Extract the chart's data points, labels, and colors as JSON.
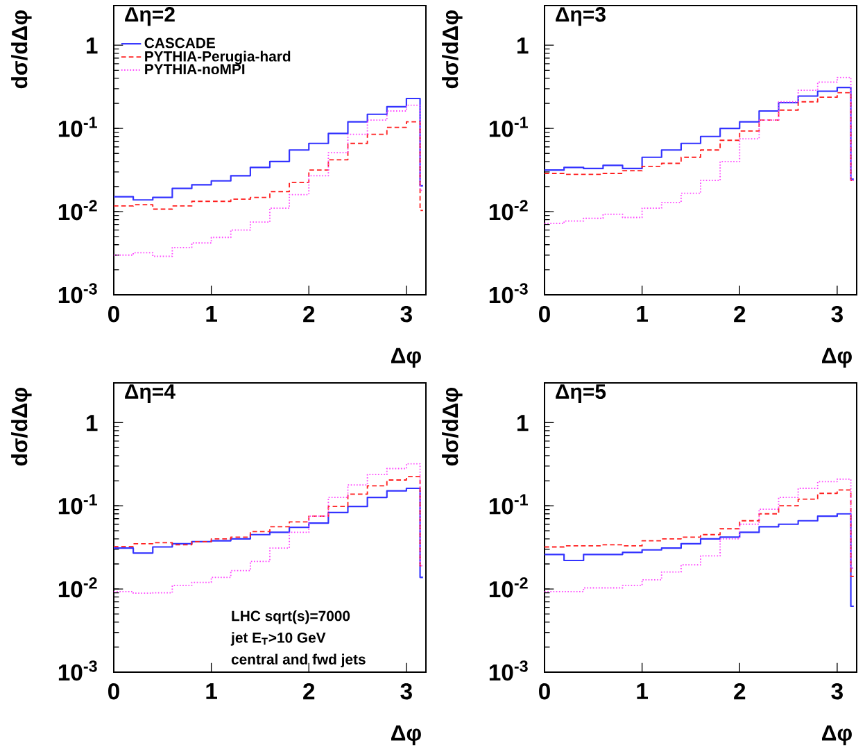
{
  "chart_data": [
    {
      "type": "step",
      "title": "Δη=2",
      "xlabel": "Δφ",
      "ylabel": "dσ/dΔφ",
      "log": true,
      "legend": "top left",
      "x": [
        0,
        0.2,
        0.4,
        0.6,
        0.8,
        1.0,
        1.2,
        1.4,
        1.6,
        1.8,
        2.0,
        2.2,
        2.4,
        2.6,
        2.8,
        3.0,
        3.14,
        3.17
      ],
      "xlim": [
        0,
        3.2
      ],
      "xticks": [
        0,
        1,
        2,
        3
      ],
      "ylim": [
        0.001,
        3
      ],
      "yticks": [
        {
          "value": 0.001,
          "label": "10$^{-3}$"
        },
        {
          "value": 0.01,
          "label": "10$^{-2}$"
        },
        {
          "value": 0.1,
          "label": "10$^{-1}$"
        },
        1
      ],
      "series": [
        {
          "name": "CASCADE",
          "color": "#3333ff",
          "line_style": "solid",
          "values": [
            0.0151,
            0.0138,
            0.0148,
            0.019,
            0.021,
            0.0234,
            0.027,
            0.034,
            0.04,
            0.055,
            0.066,
            0.087,
            0.12,
            0.148,
            0.182,
            0.229,
            0.0204,
            0.0204
          ]
        },
        {
          "name": "PYTHIA-Perugia-hard",
          "color": "#ff2020",
          "line_style": "dashed",
          "values": [
            0.0117,
            0.0121,
            0.0107,
            0.0117,
            0.0133,
            0.0133,
            0.0141,
            0.0148,
            0.0174,
            0.0224,
            0.0316,
            0.042,
            0.066,
            0.085,
            0.103,
            0.12,
            0.0103,
            0.0103
          ]
        },
        {
          "name": "PYTHIA-noMPI",
          "color": "#ff44ff",
          "line_style": "dotted",
          "values": [
            0.003,
            0.0032,
            0.0029,
            0.0037,
            0.0042,
            0.0049,
            0.006,
            0.0075,
            0.011,
            0.016,
            0.027,
            0.051,
            0.085,
            0.126,
            0.162,
            0.19,
            0.018,
            0.018
          ]
        }
      ]
    },
    {
      "type": "step",
      "title": "Δη=3",
      "xlabel": "Δφ",
      "ylabel": "dσ/dΔφ",
      "log": true,
      "x": [
        0,
        0.2,
        0.4,
        0.6,
        0.8,
        1.0,
        1.2,
        1.4,
        1.6,
        1.8,
        2.0,
        2.2,
        2.4,
        2.6,
        2.8,
        3.0,
        3.14,
        3.17
      ],
      "xlim": [
        0,
        3.2
      ],
      "xticks": [
        0,
        1,
        2,
        3
      ],
      "ylim": [
        0.001,
        3
      ],
      "yticks": [
        {
          "value": 0.001,
          "label": "10$^{-3}$"
        },
        {
          "value": 0.01,
          "label": "10$^{-2}$"
        },
        {
          "value": 0.1,
          "label": "10$^{-1}$"
        },
        1
      ],
      "series": [
        {
          "color": "#3333ff",
          "line_style": "solid",
          "values": [
            0.0316,
            0.034,
            0.033,
            0.036,
            0.033,
            0.045,
            0.055,
            0.066,
            0.08,
            0.1,
            0.12,
            0.162,
            0.204,
            0.245,
            0.28,
            0.31,
            0.0245,
            0.0245
          ]
        },
        {
          "color": "#ff2020",
          "line_style": "dashed",
          "values": [
            0.0288,
            0.028,
            0.028,
            0.0288,
            0.031,
            0.035,
            0.038,
            0.045,
            0.055,
            0.072,
            0.093,
            0.126,
            0.166,
            0.209,
            0.237,
            0.269,
            0.0237,
            0.0237
          ]
        },
        {
          "color": "#ff44ff",
          "line_style": "dotted",
          "values": [
            0.0072,
            0.0077,
            0.0083,
            0.0093,
            0.0085,
            0.011,
            0.0129,
            0.0166,
            0.0237,
            0.04,
            0.075,
            0.126,
            0.209,
            0.288,
            0.36,
            0.41,
            0.0237,
            0.0237
          ]
        }
      ]
    },
    {
      "type": "step",
      "title": "Δη=4",
      "xlabel": "Δφ",
      "ylabel": "dσ/dΔφ",
      "log": true,
      "annotations": [
        "LHC sqrt(s)=7000",
        "jet  E$_{T}$>10 GeV",
        "central and fwd jets"
      ],
      "x": [
        0,
        0.2,
        0.4,
        0.6,
        0.8,
        1.0,
        1.2,
        1.4,
        1.6,
        1.8,
        2.0,
        2.2,
        2.4,
        2.6,
        2.8,
        3.0,
        3.14,
        3.17
      ],
      "xlim": [
        0,
        3.2
      ],
      "xticks": [
        0,
        1,
        2,
        3
      ],
      "ylim": [
        0.001,
        3
      ],
      "yticks": [
        {
          "value": 0.001,
          "label": "10$^{-3}$"
        },
        {
          "value": 0.01,
          "label": "10$^{-2}$"
        },
        {
          "value": 0.1,
          "label": "10$^{-1}$"
        },
        1
      ],
      "series": [
        {
          "color": "#3333ff",
          "line_style": "solid",
          "values": [
            0.031,
            0.027,
            0.032,
            0.035,
            0.037,
            0.038,
            0.04,
            0.045,
            0.048,
            0.055,
            0.062,
            0.083,
            0.098,
            0.126,
            0.151,
            0.162,
            0.0138,
            0.0138
          ]
        },
        {
          "color": "#ff2020",
          "line_style": "dashed",
          "values": [
            0.0324,
            0.035,
            0.036,
            0.034,
            0.037,
            0.04,
            0.042,
            0.049,
            0.056,
            0.064,
            0.075,
            0.098,
            0.138,
            0.174,
            0.204,
            0.224,
            0.019,
            0.019
          ]
        },
        {
          "color": "#ff44ff",
          "line_style": "dotted",
          "values": [
            0.0093,
            0.0089,
            0.009,
            0.011,
            0.012,
            0.0138,
            0.0166,
            0.0214,
            0.031,
            0.048,
            0.075,
            0.126,
            0.178,
            0.237,
            0.28,
            0.32,
            0.019,
            0.019
          ]
        }
      ]
    },
    {
      "type": "step",
      "title": "Δη=5",
      "xlabel": "Δφ",
      "ylabel": "dσ/dΔφ",
      "log": true,
      "x": [
        0,
        0.2,
        0.4,
        0.6,
        0.8,
        1.0,
        1.2,
        1.4,
        1.6,
        1.8,
        2.0,
        2.2,
        2.4,
        2.6,
        2.8,
        3.0,
        3.14,
        3.17
      ],
      "xlim": [
        0,
        3.2
      ],
      "xticks": [
        0,
        1,
        2,
        3
      ],
      "ylim": [
        0.001,
        3
      ],
      "yticks": [
        {
          "value": 0.001,
          "label": "10$^{-3}$"
        },
        {
          "value": 0.01,
          "label": "10$^{-2}$"
        },
        {
          "value": 0.1,
          "label": "10$^{-1}$"
        },
        1
      ],
      "series": [
        {
          "color": "#3333ff",
          "line_style": "solid",
          "values": [
            0.026,
            0.022,
            0.026,
            0.026,
            0.0275,
            0.0295,
            0.031,
            0.035,
            0.04,
            0.042,
            0.048,
            0.056,
            0.06,
            0.066,
            0.075,
            0.08,
            0.0062,
            0.0062
          ]
        },
        {
          "color": "#ff2020",
          "line_style": "dashed",
          "values": [
            0.032,
            0.033,
            0.033,
            0.034,
            0.033,
            0.038,
            0.04,
            0.042,
            0.045,
            0.053,
            0.066,
            0.08,
            0.1,
            0.12,
            0.141,
            0.155,
            0.0141,
            0.0141
          ]
        },
        {
          "color": "#ff44ff",
          "line_style": "dotted",
          "values": [
            0.0093,
            0.0093,
            0.0103,
            0.0103,
            0.011,
            0.0129,
            0.016,
            0.0195,
            0.025,
            0.04,
            0.06,
            0.091,
            0.126,
            0.162,
            0.195,
            0.209,
            0.0178,
            0.0178
          ]
        }
      ]
    }
  ]
}
